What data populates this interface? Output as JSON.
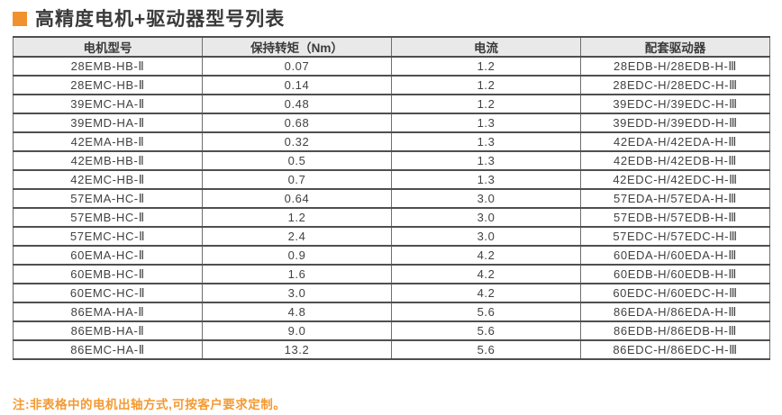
{
  "page": {
    "title": "高精度电机+驱动器型号列表",
    "note": "注:非表格中的电机出轴方式,可按客户要求定制。"
  },
  "colors": {
    "accent_orange": "#f0912d",
    "note_orange": "#f39a33",
    "header_bg": "#e9e9e9",
    "border_dark": "#4f4f4f",
    "text_dark": "#3a3a3a"
  },
  "table": {
    "headers": [
      "电机型号",
      "保持转矩（Nm）",
      "电流",
      "配套驱动器"
    ],
    "rows": [
      {
        "model": "28EMB-HB-Ⅱ",
        "torque": "0.07",
        "current": "1.2",
        "driver": "28EDB-H/28EDB-H-Ⅲ"
      },
      {
        "model": "28EMC-HB-Ⅱ",
        "torque": "0.14",
        "current": "1.2",
        "driver": "28EDC-H/28EDC-H-Ⅲ"
      },
      {
        "model": "39EMC-HA-Ⅱ",
        "torque": "0.48",
        "current": "1.2",
        "driver": "39EDC-H/39EDC-H-Ⅲ"
      },
      {
        "model": "39EMD-HA-Ⅱ",
        "torque": "0.68",
        "current": "1.3",
        "driver": "39EDD-H/39EDD-H-Ⅲ"
      },
      {
        "model": "42EMA-HB-Ⅱ",
        "torque": "0.32",
        "current": "1.3",
        "driver": "42EDA-H/42EDA-H-Ⅲ"
      },
      {
        "model": "42EMB-HB-Ⅱ",
        "torque": "0.5",
        "current": "1.3",
        "driver": "42EDB-H/42EDB-H-Ⅲ"
      },
      {
        "model": "42EMC-HB-Ⅱ",
        "torque": "0.7",
        "current": "1.3",
        "driver": "42EDC-H/42EDC-H-Ⅲ"
      },
      {
        "model": "57EMA-HC-Ⅱ",
        "torque": "0.64",
        "current": "3.0",
        "driver": "57EDA-H/57EDA-H-Ⅲ"
      },
      {
        "model": "57EMB-HC-Ⅱ",
        "torque": "1.2",
        "current": "3.0",
        "driver": "57EDB-H/57EDB-H-Ⅲ"
      },
      {
        "model": "57EMC-HC-Ⅱ",
        "torque": "2.4",
        "current": "3.0",
        "driver": "57EDC-H/57EDC-H-Ⅲ"
      },
      {
        "model": "60EMA-HC-Ⅱ",
        "torque": "0.9",
        "current": "4.2",
        "driver": "60EDA-H/60EDA-H-Ⅲ"
      },
      {
        "model": "60EMB-HC-Ⅱ",
        "torque": "1.6",
        "current": "4.2",
        "driver": "60EDB-H/60EDB-H-Ⅲ"
      },
      {
        "model": "60EMC-HC-Ⅱ",
        "torque": "3.0",
        "current": "4.2",
        "driver": "60EDC-H/60EDC-H-Ⅲ"
      },
      {
        "model": "86EMA-HA-Ⅱ",
        "torque": "4.8",
        "current": "5.6",
        "driver": "86EDA-H/86EDA-H-Ⅲ"
      },
      {
        "model": "86EMB-HA-Ⅱ",
        "torque": "9.0",
        "current": "5.6",
        "driver": "86EDB-H/86EDB-H-Ⅲ"
      },
      {
        "model": "86EMC-HA-Ⅱ",
        "torque": "13.2",
        "current": "5.6",
        "driver": "86EDC-H/86EDC-H-Ⅲ"
      }
    ]
  }
}
